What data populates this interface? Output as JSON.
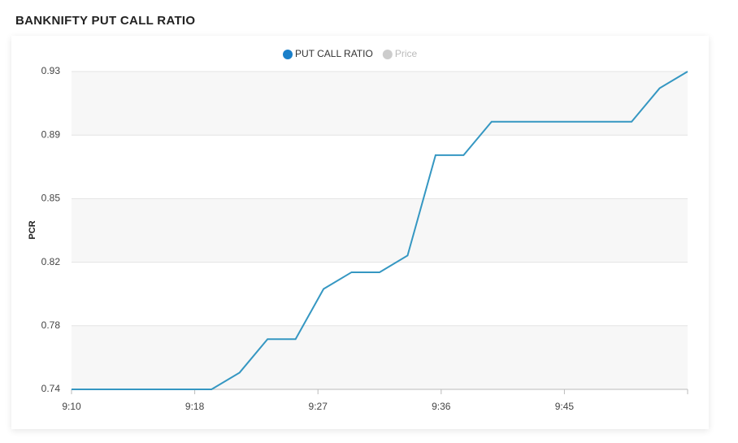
{
  "chart_data": {
    "type": "line",
    "title": "BANKNIFTY PUT CALL RATIO",
    "y_label": "PCR",
    "x": [
      10,
      12,
      14,
      16,
      18,
      20,
      22,
      24,
      26,
      28,
      30,
      32,
      34,
      36,
      38,
      40,
      42,
      44,
      46,
      48,
      50,
      52,
      54
    ],
    "xlim": [
      10,
      54
    ],
    "xticks": [
      {
        "value": 10,
        "label": "9:10"
      },
      {
        "value": 18.8,
        "label": "9:18"
      },
      {
        "value": 27.6,
        "label": "9:27"
      },
      {
        "value": 36.4,
        "label": "9:36"
      },
      {
        "value": 45.2,
        "label": "9:45"
      }
    ],
    "ylim": [
      0.74,
      0.93
    ],
    "yticks": [
      {
        "value": 0.74,
        "label": "0.74"
      },
      {
        "value": 0.778,
        "label": "0.78"
      },
      {
        "value": 0.816,
        "label": "0.82"
      },
      {
        "value": 0.854,
        "label": "0.85"
      },
      {
        "value": 0.892,
        "label": "0.89"
      },
      {
        "value": 0.93,
        "label": "0.93"
      }
    ],
    "grid": true,
    "series": [
      {
        "name": "PUT CALL RATIO",
        "color": "#3597c2",
        "legend_color": "#1a7fc9",
        "values": [
          0.74,
          0.74,
          0.74,
          0.74,
          0.74,
          0.74,
          0.75,
          0.77,
          0.77,
          0.8,
          0.81,
          0.81,
          0.82,
          0.88,
          0.88,
          0.9,
          0.9,
          0.9,
          0.9,
          0.9,
          0.9,
          0.92,
          0.93
        ]
      },
      {
        "name": "Price",
        "color": "#cccccc",
        "hidden": true
      }
    ]
  }
}
